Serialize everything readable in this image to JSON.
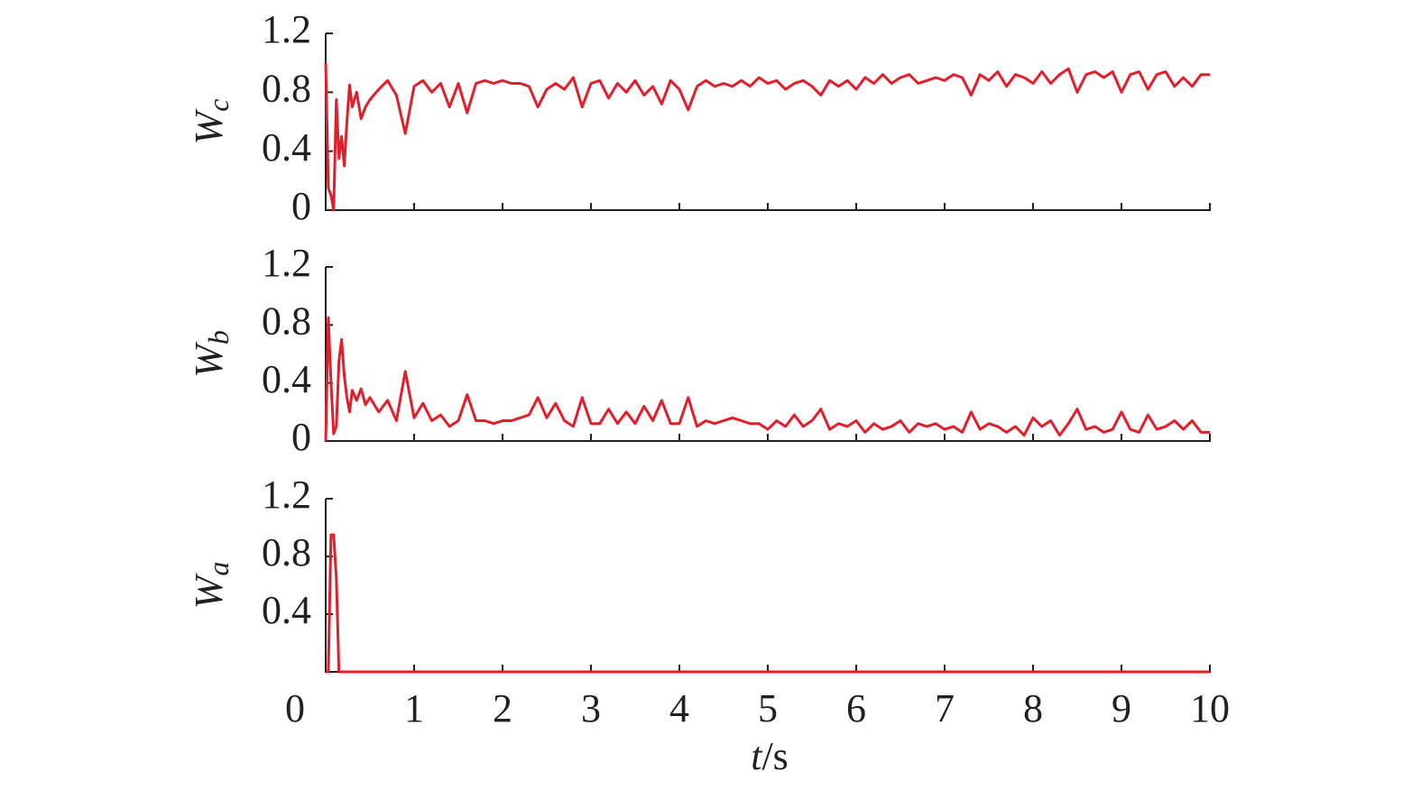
{
  "chart_data": [
    {
      "type": "line",
      "ylabel": "W",
      "ylabel_subscript": "c",
      "color": "#e31e2b",
      "x": [
        0,
        0.03,
        0.06,
        0.09,
        0.12,
        0.15,
        0.18,
        0.21,
        0.24,
        0.27,
        0.3,
        0.35,
        0.4,
        0.45,
        0.5,
        0.6,
        0.7,
        0.8,
        0.9,
        1.0,
        1.1,
        1.2,
        1.3,
        1.4,
        1.5,
        1.6,
        1.7,
        1.8,
        1.9,
        2.0,
        2.1,
        2.2,
        2.3,
        2.4,
        2.5,
        2.6,
        2.7,
        2.8,
        2.9,
        3.0,
        3.1,
        3.2,
        3.3,
        3.4,
        3.5,
        3.6,
        3.7,
        3.8,
        3.9,
        4.0,
        4.1,
        4.2,
        4.3,
        4.4,
        4.5,
        4.6,
        4.7,
        4.8,
        4.9,
        5.0,
        5.1,
        5.2,
        5.3,
        5.4,
        5.5,
        5.6,
        5.7,
        5.8,
        5.9,
        6.0,
        6.1,
        6.2,
        6.3,
        6.4,
        6.5,
        6.6,
        6.7,
        6.8,
        6.9,
        7.0,
        7.1,
        7.2,
        7.3,
        7.4,
        7.5,
        7.6,
        7.7,
        7.8,
        7.9,
        8.0,
        8.1,
        8.2,
        8.3,
        8.4,
        8.5,
        8.6,
        8.7,
        8.8,
        8.9,
        9.0,
        9.1,
        9.2,
        9.3,
        9.4,
        9.5,
        9.6,
        9.7,
        9.8,
        9.9,
        10.0
      ],
      "values": [
        1.0,
        0.15,
        0.1,
        0.0,
        0.75,
        0.35,
        0.5,
        0.3,
        0.6,
        0.85,
        0.7,
        0.8,
        0.62,
        0.7,
        0.75,
        0.82,
        0.88,
        0.78,
        0.52,
        0.84,
        0.88,
        0.8,
        0.86,
        0.7,
        0.86,
        0.66,
        0.86,
        0.88,
        0.86,
        0.88,
        0.86,
        0.86,
        0.84,
        0.7,
        0.82,
        0.86,
        0.82,
        0.9,
        0.7,
        0.86,
        0.88,
        0.76,
        0.86,
        0.8,
        0.88,
        0.78,
        0.84,
        0.72,
        0.88,
        0.82,
        0.68,
        0.84,
        0.88,
        0.84,
        0.86,
        0.84,
        0.88,
        0.84,
        0.9,
        0.86,
        0.88,
        0.82,
        0.86,
        0.88,
        0.84,
        0.78,
        0.88,
        0.84,
        0.88,
        0.82,
        0.9,
        0.86,
        0.92,
        0.86,
        0.9,
        0.92,
        0.86,
        0.88,
        0.9,
        0.88,
        0.92,
        0.9,
        0.78,
        0.92,
        0.88,
        0.94,
        0.84,
        0.92,
        0.9,
        0.86,
        0.94,
        0.86,
        0.92,
        0.96,
        0.8,
        0.92,
        0.94,
        0.9,
        0.94,
        0.8,
        0.92,
        0.94,
        0.82,
        0.92,
        0.94,
        0.84,
        0.9,
        0.84,
        0.92,
        0.92
      ],
      "xlim": [
        0,
        10
      ],
      "ylim": [
        0,
        1.2
      ],
      "yticks": [
        0,
        0.4,
        0.8,
        1.2
      ]
    },
    {
      "type": "line",
      "ylabel": "W",
      "ylabel_subscript": "b",
      "color": "#e31e2b",
      "x": [
        0,
        0.03,
        0.06,
        0.09,
        0.12,
        0.15,
        0.18,
        0.21,
        0.24,
        0.27,
        0.3,
        0.35,
        0.4,
        0.45,
        0.5,
        0.6,
        0.7,
        0.8,
        0.9,
        1.0,
        1.1,
        1.2,
        1.3,
        1.4,
        1.5,
        1.6,
        1.7,
        1.8,
        1.9,
        2.0,
        2.1,
        2.2,
        2.3,
        2.4,
        2.5,
        2.6,
        2.7,
        2.8,
        2.9,
        3.0,
        3.1,
        3.2,
        3.3,
        3.4,
        3.5,
        3.6,
        3.7,
        3.8,
        3.9,
        4.0,
        4.1,
        4.2,
        4.3,
        4.4,
        4.5,
        4.6,
        4.7,
        4.8,
        4.9,
        5.0,
        5.1,
        5.2,
        5.3,
        5.4,
        5.5,
        5.6,
        5.7,
        5.8,
        5.9,
        6.0,
        6.1,
        6.2,
        6.3,
        6.4,
        6.5,
        6.6,
        6.7,
        6.8,
        6.9,
        7.0,
        7.1,
        7.2,
        7.3,
        7.4,
        7.5,
        7.6,
        7.7,
        7.8,
        7.9,
        8.0,
        8.1,
        8.2,
        8.3,
        8.4,
        8.5,
        8.6,
        8.7,
        8.8,
        8.9,
        9.0,
        9.1,
        9.2,
        9.3,
        9.4,
        9.5,
        9.6,
        9.7,
        9.8,
        9.9,
        10.0
      ],
      "values": [
        0.0,
        0.85,
        0.4,
        0.05,
        0.1,
        0.55,
        0.7,
        0.45,
        0.3,
        0.2,
        0.35,
        0.28,
        0.36,
        0.25,
        0.3,
        0.2,
        0.28,
        0.14,
        0.48,
        0.16,
        0.26,
        0.14,
        0.18,
        0.1,
        0.14,
        0.32,
        0.14,
        0.14,
        0.12,
        0.14,
        0.14,
        0.16,
        0.18,
        0.3,
        0.16,
        0.26,
        0.14,
        0.1,
        0.3,
        0.12,
        0.12,
        0.22,
        0.12,
        0.2,
        0.12,
        0.24,
        0.14,
        0.28,
        0.12,
        0.12,
        0.3,
        0.1,
        0.14,
        0.12,
        0.14,
        0.16,
        0.14,
        0.12,
        0.12,
        0.08,
        0.14,
        0.1,
        0.18,
        0.1,
        0.14,
        0.22,
        0.08,
        0.12,
        0.1,
        0.14,
        0.06,
        0.12,
        0.08,
        0.1,
        0.14,
        0.06,
        0.12,
        0.1,
        0.12,
        0.08,
        0.1,
        0.06,
        0.2,
        0.08,
        0.12,
        0.1,
        0.06,
        0.1,
        0.04,
        0.16,
        0.1,
        0.14,
        0.04,
        0.12,
        0.22,
        0.08,
        0.1,
        0.06,
        0.08,
        0.2,
        0.08,
        0.06,
        0.18,
        0.08,
        0.1,
        0.14,
        0.08,
        0.14,
        0.06,
        0.06
      ],
      "xlim": [
        0,
        10
      ],
      "ylim": [
        0,
        1.2
      ],
      "yticks": [
        0,
        0.4,
        0.8,
        1.2
      ]
    },
    {
      "type": "line",
      "ylabel": "W",
      "ylabel_subscript": "a",
      "color": "#e31e2b",
      "x": [
        0,
        0.03,
        0.06,
        0.09,
        0.12,
        0.15,
        0.18,
        0.21,
        0.24,
        0.27,
        0.3,
        0.35,
        0.4,
        0.45,
        0.5,
        0.6,
        0.7,
        0.8,
        0.9,
        1.0,
        1.1,
        1.2,
        1.3,
        1.4,
        1.5,
        1.6,
        1.7,
        1.8,
        1.9,
        2.0,
        2.1,
        2.2,
        2.3,
        2.4,
        2.5,
        2.6,
        2.7,
        2.8,
        2.9,
        3.0,
        3.1,
        3.2,
        3.3,
        3.4,
        3.5,
        3.6,
        3.7,
        3.8,
        3.9,
        4.0,
        4.1,
        4.2,
        4.3,
        4.4,
        4.5,
        4.6,
        4.7,
        4.8,
        4.9,
        5.0,
        5.1,
        5.2,
        5.3,
        5.4,
        5.5,
        5.6,
        5.7,
        5.8,
        5.9,
        6.0,
        6.1,
        6.2,
        6.3,
        6.4,
        6.5,
        6.6,
        6.7,
        6.8,
        6.9,
        7.0,
        7.1,
        7.2,
        7.3,
        7.4,
        7.5,
        7.6,
        7.7,
        7.8,
        7.9,
        8.0,
        8.1,
        8.2,
        8.3,
        8.4,
        8.5,
        8.6,
        8.7,
        8.8,
        8.9,
        9.0,
        9.1,
        9.2,
        9.3,
        9.4,
        9.5,
        9.6,
        9.7,
        9.8,
        9.9,
        10.0
      ],
      "values": [
        0,
        0,
        0.95,
        0.95,
        0.65,
        0,
        0,
        0,
        0,
        0,
        0,
        0,
        0,
        0,
        0,
        0,
        0,
        0,
        0,
        0,
        0,
        0,
        0,
        0,
        0,
        0,
        0,
        0,
        0,
        0,
        0,
        0,
        0,
        0,
        0,
        0,
        0,
        0,
        0,
        0,
        0,
        0,
        0,
        0,
        0,
        0,
        0,
        0,
        0,
        0,
        0,
        0,
        0,
        0,
        0,
        0,
        0,
        0,
        0,
        0,
        0,
        0,
        0,
        0,
        0,
        0,
        0,
        0,
        0,
        0,
        0,
        0,
        0,
        0,
        0,
        0,
        0,
        0,
        0,
        0,
        0,
        0,
        0,
        0,
        0,
        0,
        0,
        0,
        0,
        0,
        0,
        0,
        0,
        0,
        0,
        0,
        0,
        0,
        0,
        0,
        0,
        0,
        0,
        0,
        0,
        0,
        0,
        0,
        0,
        0
      ],
      "xlim": [
        0,
        10
      ],
      "ylim": [
        0,
        1.2
      ],
      "yticks": [
        0.4,
        0.8,
        1.2
      ],
      "xticks": [
        0,
        1,
        2,
        3,
        4,
        5,
        6,
        7,
        8,
        9,
        10
      ],
      "xlabel_var": "t",
      "xlabel_unit": "/s"
    }
  ]
}
